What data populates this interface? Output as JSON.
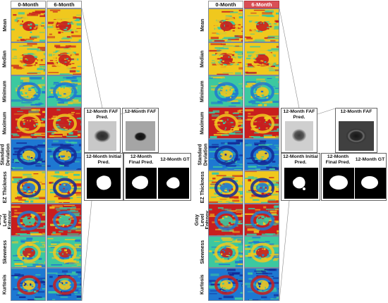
{
  "column_headers": [
    "0-Month",
    "6-Month"
  ],
  "rows": [
    "Mean",
    "Median",
    "Minimum",
    "Maximum",
    "Standard Deviation",
    "EZ Thickness",
    "Gray Level Entropy",
    "Skewness",
    "Kurtosis"
  ],
  "captions": {
    "fafPred": "12-Month FAF Pred.",
    "faf": "12-Month FAF",
    "initialPred": "12-Month Initial Pred.",
    "finalPred": "12-Month Final Pred.",
    "gt": "12-Month GT"
  },
  "colors": {
    "hot": "#c81e1e",
    "warm": "#f0c81e",
    "mid": "#3cc8a0",
    "cool": "#1e78d2",
    "cold": "#142896",
    "highlight_header": "#d94f56"
  }
}
